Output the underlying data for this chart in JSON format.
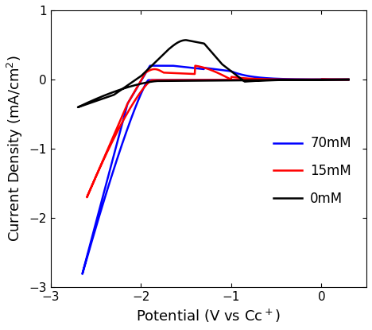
{
  "title": "",
  "xlabel": "Potential (V vs Cc$^+$)",
  "ylabel": "Current Density (mA/cm$^2$)",
  "xlim": [
    -3,
    0.5
  ],
  "ylim": [
    -3,
    1
  ],
  "xticks": [
    -3,
    -2,
    -1,
    0
  ],
  "yticks": [
    -3,
    -2,
    -1,
    0,
    1
  ],
  "legend_labels": [
    "0mM",
    "15mM",
    "70mM"
  ],
  "legend_colors": [
    "black",
    "red",
    "blue"
  ],
  "background_color": "#ffffff",
  "line_width": 1.8
}
